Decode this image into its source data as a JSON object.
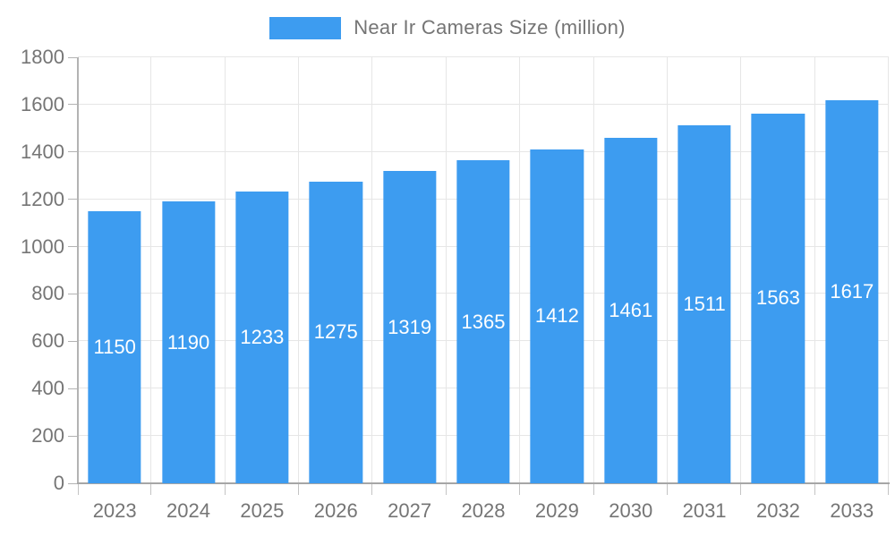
{
  "chart_data": {
    "type": "bar",
    "title": "Near Ir Cameras Size (million)",
    "categories": [
      "2023",
      "2024",
      "2025",
      "2026",
      "2027",
      "2028",
      "2029",
      "2030",
      "2031",
      "2032",
      "2033"
    ],
    "values": [
      1150,
      1190,
      1233,
      1275,
      1319,
      1365,
      1412,
      1461,
      1511,
      1563,
      1617
    ],
    "xlabel": "",
    "ylabel": "",
    "ylim": [
      0,
      1800
    ],
    "ytick_step": 200,
    "grid": true,
    "legend_position": "top-center",
    "bar_color": "#3D9CF0",
    "value_label_color": "#ffffff",
    "axis_text_color": "#757575",
    "background_color": "#ffffff"
  },
  "legend": {
    "label": "Near Ir Cameras Size (million)"
  }
}
